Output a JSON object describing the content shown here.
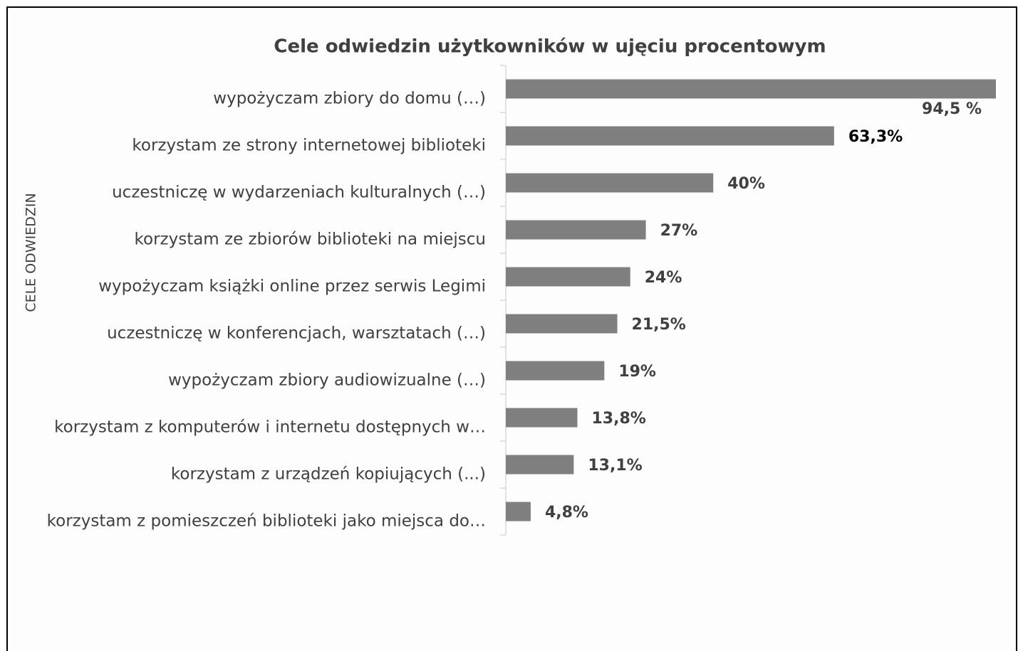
{
  "chart_data": {
    "type": "bar",
    "orientation": "horizontal",
    "title": "Cele odwiedzin użytkowników w ujęciu procentowym",
    "y_label": "CELE ODWIEDZIN",
    "categories": [
      "wypożyczam zbiory do domu (…)",
      "korzystam ze strony internetowej biblioteki",
      "uczestniczę w wydarzeniach kulturalnych (…)",
      "korzystam ze zbiorów biblioteki na miejscu",
      "wypożyczam książki online przez serwis Legimi",
      "uczestniczę w konferencjach, warsztatach (…)",
      "wypożyczam zbiory audiowizualne (…)",
      "korzystam z komputerów i internetu dostępnych w…",
      "korzystam z urządzeń kopiujących (...)",
      "korzystam z pomieszczeń biblioteki jako miejsca do…"
    ],
    "values": [
      94.5,
      63.3,
      40,
      27,
      24,
      21.5,
      19,
      13.8,
      13.1,
      4.8
    ],
    "value_labels": [
      "94,5 %",
      "63,3%",
      "40%",
      "27%",
      "24%",
      "21,5%",
      "19%",
      "13,8%",
      "13,1%",
      "4,8%"
    ],
    "color": "#7f7f7f"
  }
}
